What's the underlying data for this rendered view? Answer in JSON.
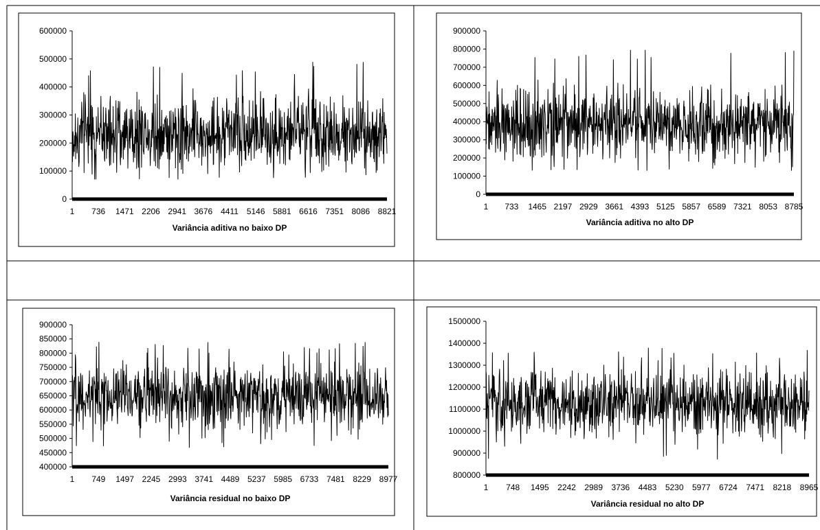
{
  "chart_data": [
    {
      "type": "line",
      "xlabel": "Variância aditiva no baixo DP",
      "ylim": [
        0,
        600000
      ],
      "yticks": [
        0,
        100000,
        200000,
        300000,
        400000,
        500000,
        600000
      ],
      "xtick_labels": [
        "1",
        "736",
        "1471",
        "2206",
        "2941",
        "3676",
        "4411",
        "5146",
        "5881",
        "6616",
        "7351",
        "8086",
        "8821"
      ],
      "xlim": [
        1,
        9000
      ],
      "series_summary": {
        "center": 235000,
        "spread": 65000,
        "min": 70000,
        "max": 490000
      },
      "color": "#000000"
    },
    {
      "type": "line",
      "xlabel": "Variância aditiva no alto DP",
      "ylim": [
        0,
        900000
      ],
      "yticks": [
        0,
        100000,
        200000,
        300000,
        400000,
        500000,
        600000,
        700000,
        800000,
        900000
      ],
      "xtick_labels": [
        "1",
        "733",
        "1465",
        "2197",
        "2929",
        "3661",
        "4393",
        "5125",
        "5857",
        "6589",
        "7321",
        "8053",
        "8785"
      ],
      "xlim": [
        1,
        9000
      ],
      "series_summary": {
        "center": 390000,
        "spread": 95000,
        "min": 130000,
        "max": 800000
      },
      "color": "#000000"
    },
    {
      "type": "line",
      "xlabel": "Variância residual no baixo DP",
      "ylim": [
        400000,
        900000
      ],
      "yticks": [
        400000,
        450000,
        500000,
        550000,
        600000,
        650000,
        700000,
        750000,
        800000,
        850000,
        900000
      ],
      "xtick_labels": [
        "1",
        "749",
        "1497",
        "2245",
        "2993",
        "3741",
        "4489",
        "5237",
        "5985",
        "6733",
        "7481",
        "8229",
        "8977"
      ],
      "xlim": [
        1,
        9000
      ],
      "series_summary": {
        "center": 650000,
        "spread": 55000,
        "min": 465000,
        "max": 845000
      },
      "color": "#000000"
    },
    {
      "type": "line",
      "xlabel": "Variância residual no alto DP",
      "ylim": [
        800000,
        1500000
      ],
      "yticks": [
        800000,
        900000,
        1000000,
        1100000,
        1200000,
        1300000,
        1400000,
        1500000
      ],
      "xtick_labels": [
        "1",
        "748",
        "1495",
        "2242",
        "2989",
        "3736",
        "4483",
        "5230",
        "5977",
        "6724",
        "7471",
        "8218",
        "8965"
      ],
      "xlim": [
        1,
        9000
      ],
      "series_summary": {
        "center": 1125000,
        "spread": 80000,
        "min": 860000,
        "max": 1385000
      },
      "color": "#000000"
    }
  ]
}
